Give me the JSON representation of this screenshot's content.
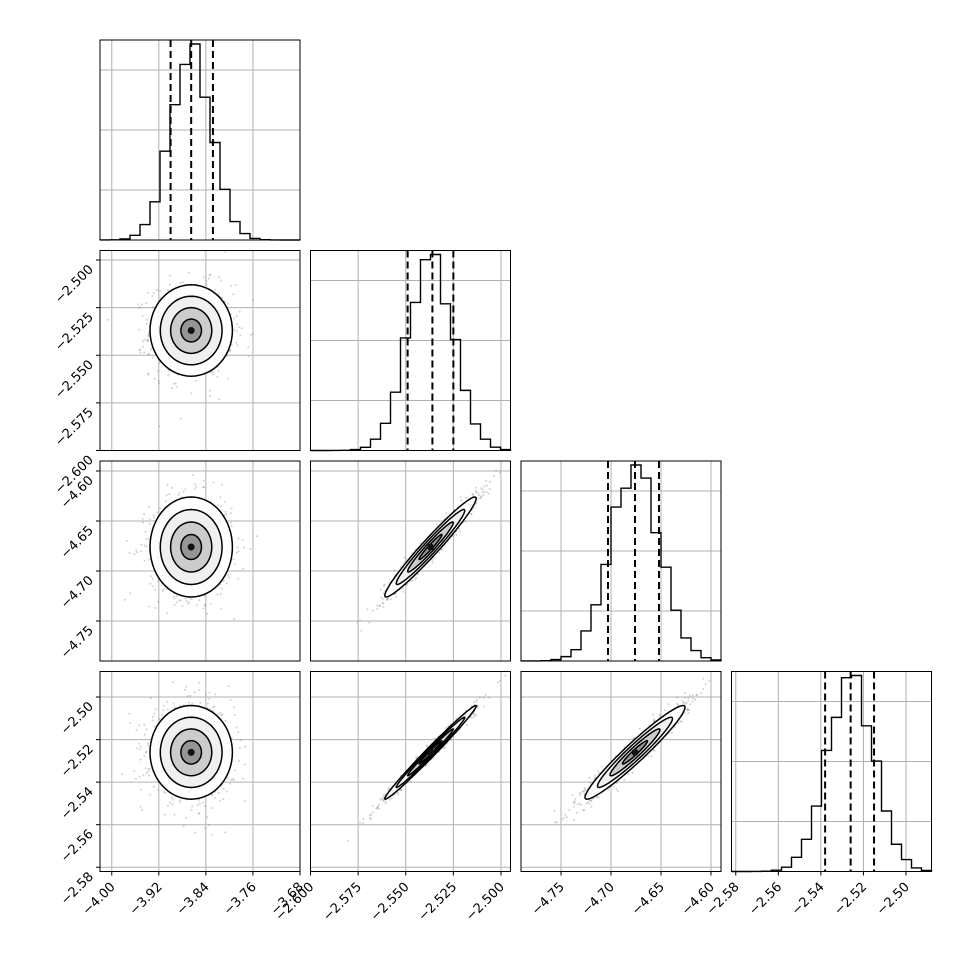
{
  "chart_data": {
    "type": "corner",
    "n_params": 4,
    "grid": true,
    "colors": {
      "line": "#000000",
      "grid": "#b0b0b0",
      "points": "#7a7a7a"
    },
    "params": [
      {
        "range": [
          -4.02,
          -3.68
        ],
        "quantiles": [
          -3.9,
          -3.865,
          -3.828
        ],
        "ticks": [
          -4.0,
          -3.92,
          -3.84,
          -3.76,
          -3.68
        ],
        "tick_labels": [
          "−4.00",
          "−3.92",
          "−3.84",
          "−3.76",
          "−3.68"
        ],
        "center": -3.865,
        "sigma": 0.035
      },
      {
        "range": [
          -2.6,
          -2.495
        ],
        "quantiles": [
          -2.549,
          -2.536,
          -2.525
        ],
        "ticks": [
          -2.6,
          -2.575,
          -2.55,
          -2.525,
          -2.5
        ],
        "tick_labels": [
          "−2.600",
          "−2.575",
          "−2.550",
          "−2.525",
          "−2.500"
        ],
        "center": -2.537,
        "sigma": 0.012
      },
      {
        "range": [
          -4.79,
          -4.59
        ],
        "quantiles": [
          -4.703,
          -4.676,
          -4.652
        ],
        "ticks": [
          -4.75,
          -4.7,
          -4.65,
          -4.6
        ],
        "tick_labels": [
          "−4.75",
          "−4.70",
          "−4.65",
          "−4.60"
        ],
        "center": -4.676,
        "sigma": 0.025
      },
      {
        "range": [
          -2.582,
          -2.488
        ],
        "quantiles": [
          -2.538,
          -2.526,
          -2.515
        ],
        "ticks": [
          -2.58,
          -2.56,
          -2.54,
          -2.52,
          -2.5
        ],
        "tick_labels": [
          "−2.58",
          "−2.56",
          "−2.54",
          "−2.52",
          "−2.50"
        ],
        "center": -2.526,
        "sigma": 0.011
      }
    ],
    "row_tick_labels": [
      null,
      [
        "−2.500",
        "−2.525",
        "−2.550",
        "−2.575",
        "−2.600"
      ],
      [
        "−4.60",
        "−4.65",
        "−4.70",
        "−4.75"
      ],
      [
        "−2.50",
        "−2.52",
        "−2.54",
        "−2.56",
        "−2.58"
      ]
    ],
    "correlations": [
      [
        1.0,
        0.0,
        0.0,
        0.0
      ],
      [
        0.0,
        1.0,
        0.97,
        0.99
      ],
      [
        0.0,
        0.97,
        1.0,
        0.96
      ],
      [
        0.0,
        0.99,
        0.96,
        1.0
      ]
    ]
  }
}
